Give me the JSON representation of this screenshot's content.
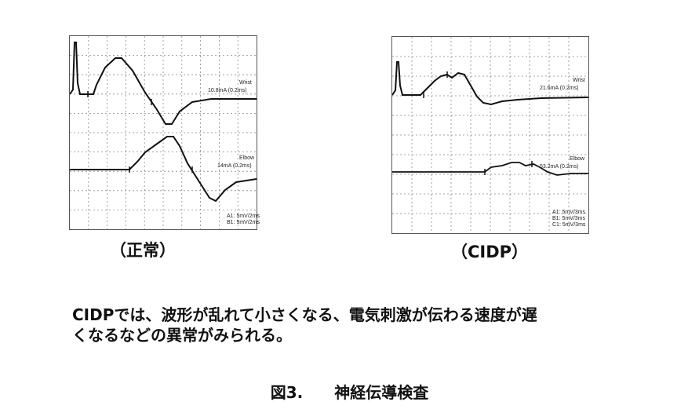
{
  "left_panel": {
    "label": "（正常）",
    "wrist_label": "Wrist",
    "wrist_stim": "10.8mA (0.2ms)",
    "elbow_label": "Elbow",
    "elbow_stim": "14mA (0.2ms)",
    "settings": [
      "A1: 5mV/2ms",
      "B1: 5mV/2ms"
    ]
  },
  "right_panel": {
    "label": "（CIDP）",
    "wrist_label": "Wrist",
    "wrist_stim": "21.6mA (0.2ms)",
    "elbow_label": "Elbow",
    "elbow_stim": "53.2mA (0.2ms)",
    "settings": [
      "A1: 5mV/3ms",
      "B1: 5mV/3ms",
      "C1: 5mV/3ms"
    ]
  },
  "caption": {
    "line1": "CIDPでは、波形が乱れて小さくなる、電気刺激が伝わる速度が遅",
    "line2": "くなるなどの異常がみられる。"
  },
  "figure_title": "図3.　　神経伝導検査"
}
